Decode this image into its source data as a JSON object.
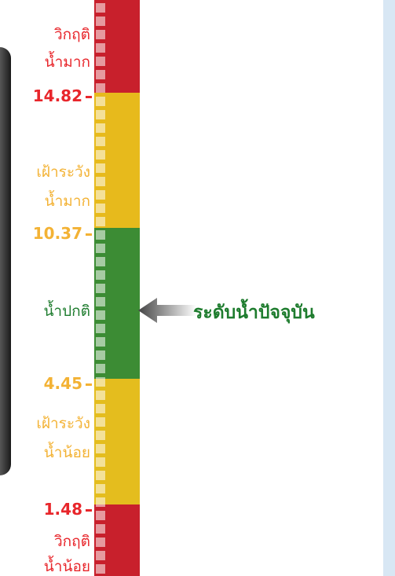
{
  "zones": [
    {
      "label": [
        "วิกฤติ",
        "น้ำมาก"
      ]
    },
    {
      "label": [
        "เฝ้าระวัง",
        "น้ำมาก"
      ]
    },
    {
      "label": [
        "น้ำปกติ"
      ]
    },
    {
      "label": [
        "เฝ้าระวัง",
        "น้ำน้อย"
      ]
    },
    {
      "label": [
        "วิกฤติ",
        "น้ำน้อย"
      ]
    }
  ],
  "levels": [
    14.82,
    10.37,
    4.45,
    1.48
  ],
  "current": {
    "label": "ระดับน้ำปัจจุบัน"
  }
}
